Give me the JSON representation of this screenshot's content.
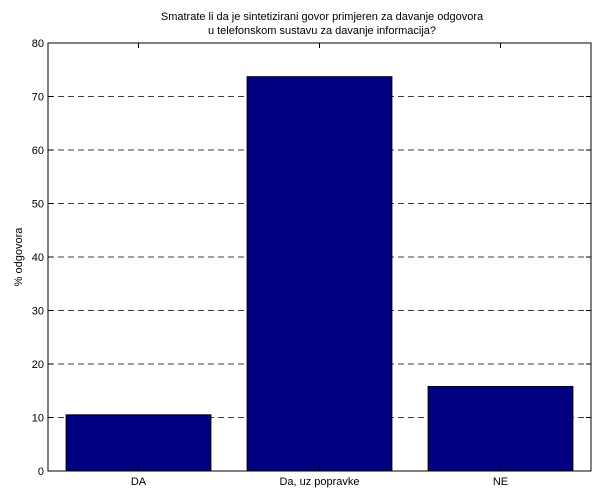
{
  "chart_data": {
    "type": "bar",
    "title_lines": [
      "Smatrate li da je sintetizirani govor primjeren za davanje odgovora",
      "u telefonskom sustavu za davanje informacija?"
    ],
    "xlabel": "",
    "ylabel": "% odgovora",
    "categories": [
      "DA",
      "Da, uz popravke",
      "NE"
    ],
    "values": [
      10.5,
      73.7,
      15.8
    ],
    "ylim": [
      0,
      80
    ],
    "yticks": [
      0,
      10,
      20,
      30,
      40,
      50,
      60,
      70,
      80
    ],
    "grid": "y-dashed",
    "bar_color": "#000080"
  }
}
